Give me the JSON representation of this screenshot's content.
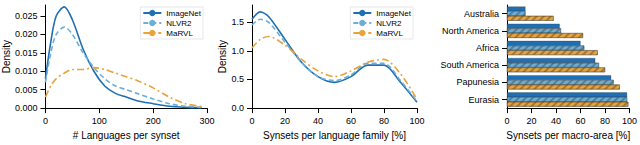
{
  "chart_data": [
    {
      "type": "line",
      "x_label": "# Languages per synset",
      "y_label": "Density",
      "xlim": [
        0,
        300
      ],
      "xticks": [
        0,
        100,
        200,
        300
      ],
      "ylim": [
        0,
        0.028
      ],
      "yticks": [
        {
          "value": 0,
          "label": "0.000"
        },
        {
          "value": 0.005,
          "label": "0.005"
        },
        {
          "value": 0.01,
          "label": "0.010"
        },
        {
          "value": 0.015,
          "label": "0.015"
        },
        {
          "value": 0.02,
          "label": "0.020"
        },
        {
          "value": 0.025,
          "label": "0.025"
        }
      ],
      "x": [
        0,
        10,
        20,
        35,
        50,
        70,
        90,
        110,
        130,
        150,
        170,
        200,
        230,
        260,
        290
      ],
      "series": [
        {
          "name": "ImageNet",
          "color": "#1f6fb4",
          "line_style": "solid",
          "values": [
            0.008,
            0.018,
            0.025,
            0.0275,
            0.024,
            0.016,
            0.01,
            0.006,
            0.004,
            0.003,
            0.002,
            0.0012,
            0.0005,
            0.0002,
            0.0001
          ]
        },
        {
          "name": "NLVR2",
          "color": "#6baed6",
          "line_style": "dashed",
          "values": [
            0.007,
            0.015,
            0.02,
            0.022,
            0.02,
            0.015,
            0.011,
            0.008,
            0.006,
            0.005,
            0.004,
            0.0025,
            0.0012,
            0.0005,
            0.0002
          ]
        },
        {
          "name": "MaRVL",
          "color": "#e8a33a",
          "line_style": "dashdot",
          "values": [
            0.003,
            0.006,
            0.008,
            0.0095,
            0.0105,
            0.0105,
            0.011,
            0.0105,
            0.0095,
            0.0085,
            0.0075,
            0.0055,
            0.003,
            0.0012,
            0.0004
          ]
        }
      ],
      "legend": "upper right"
    },
    {
      "type": "line",
      "x_label": "Synsets per language family [%]",
      "y_label": "Density",
      "xlim": [
        0,
        100
      ],
      "xticks": [
        0,
        20,
        40,
        60,
        80,
        100
      ],
      "ylim": [
        0,
        1.8
      ],
      "yticks": [
        {
          "value": 0,
          "label": "0.0"
        },
        {
          "value": 0.5,
          "label": "0.5"
        },
        {
          "value": 1,
          "label": "1.0"
        },
        {
          "value": 1.5,
          "label": "1.5"
        }
      ],
      "x": [
        0,
        5,
        10,
        20,
        30,
        40,
        50,
        60,
        70,
        80,
        90,
        100
      ],
      "series": [
        {
          "name": "ImageNet",
          "color": "#1f6fb4",
          "line_style": "solid",
          "values": [
            1.55,
            1.68,
            1.6,
            1.2,
            0.8,
            0.55,
            0.45,
            0.55,
            0.75,
            0.75,
            0.45,
            0.1
          ]
        },
        {
          "name": "NLVR2",
          "color": "#6baed6",
          "line_style": "dashed",
          "values": [
            1.45,
            1.55,
            1.5,
            1.15,
            0.8,
            0.55,
            0.48,
            0.58,
            0.78,
            0.78,
            0.48,
            0.12
          ]
        },
        {
          "name": "MaRVL",
          "color": "#e8a33a",
          "line_style": "dashdot",
          "values": [
            1.05,
            1.2,
            1.25,
            1.1,
            0.85,
            0.65,
            0.55,
            0.65,
            0.8,
            0.85,
            0.6,
            0.15
          ]
        }
      ],
      "legend": "upper right"
    },
    {
      "type": "bar",
      "orientation": "horizontal",
      "x_label": "Synsets per macro-area [%]",
      "xlim": [
        0,
        100
      ],
      "xticks": [
        0,
        20,
        40,
        60,
        80,
        100
      ],
      "categories": [
        "Australia",
        "North America",
        "Africa",
        "South America",
        "Papunesia",
        "Eurasia"
      ],
      "series": [
        {
          "name": "ImageNet",
          "color": "#1f6fb4",
          "values": [
            15,
            43,
            60,
            72,
            85,
            98
          ]
        },
        {
          "name": "NLVR2",
          "color": "#6baed6",
          "values": [
            15,
            44,
            63,
            75,
            87,
            98
          ]
        },
        {
          "name": "MaRVL",
          "color": "#e8a33a",
          "values": [
            38,
            62,
            74,
            80,
            92,
            99
          ]
        }
      ]
    }
  ]
}
